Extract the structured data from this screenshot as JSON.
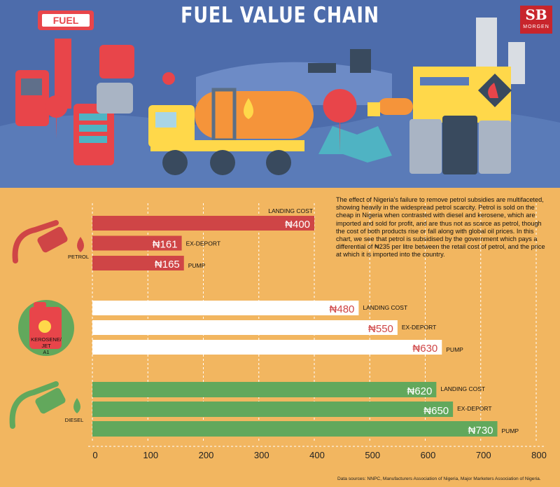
{
  "title": "FUEL VALUE CHAIN",
  "logo": {
    "letters": "SB",
    "name": "MORGEN"
  },
  "hero_sign": "FUEL",
  "description": "The effect of Nigeria's failure to remove petrol subsidies are multifaceted, showing heavily in the widespread petrol scarcity. Petrol is sold on the cheap in Nigeria when contrasted with diesel and kerosene, which are imported and sold for profit, and are thus not as scarce as petrol, though the cost of both products rise or fall along with global oil prices. In this chart, we see that petrol is subsidised by the government which pays a differential of ₦235 per litre between the retail cost of petrol, and the price at which it is imported into the country.",
  "source_note": "Data sources: NNPC, Manufacturers Association of Nigeria, Major Marketers Association of Nigeria.",
  "colors": {
    "petrol": "#cf4546",
    "kerosene": "#ffffff",
    "diesel": "#62a85c",
    "background": "#f2b660",
    "hero": "#4d6cab"
  },
  "chart_data": {
    "type": "bar",
    "orientation": "horizontal",
    "title": "FUEL VALUE CHAIN",
    "currency": "₦",
    "xlim": [
      0,
      800
    ],
    "xticks": [
      0,
      100,
      200,
      300,
      400,
      500,
      600,
      700,
      800
    ],
    "grid": true,
    "groups": [
      {
        "name": "PETROL",
        "icon": "fuel-nozzle-icon",
        "color": "#cf4546",
        "bars": [
          {
            "label": "LANDING COST",
            "value": 400,
            "display": "₦400"
          },
          {
            "label": "EX-DEPORT",
            "value": 161,
            "display": "₦161"
          },
          {
            "label": "PUMP",
            "value": 165,
            "display": "₦165"
          }
        ]
      },
      {
        "name": "KEROSENE/ JET A1",
        "icon": "jerrycan-icon",
        "color": "#ffffff",
        "bars": [
          {
            "label": "LANDING COST",
            "value": 480,
            "display": "₦480"
          },
          {
            "label": "EX-DEPORT",
            "value": 550,
            "display": "₦550"
          },
          {
            "label": "PUMP",
            "value": 630,
            "display": "₦630"
          }
        ]
      },
      {
        "name": "DIESEL",
        "icon": "fuel-nozzle-icon",
        "color": "#62a85c",
        "bars": [
          {
            "label": "LANDING COST",
            "value": 620,
            "display": "₦620"
          },
          {
            "label": "EX-DEPORT",
            "value": 650,
            "display": "₦650"
          },
          {
            "label": "PUMP",
            "value": 730,
            "display": "₦730"
          }
        ]
      }
    ]
  }
}
